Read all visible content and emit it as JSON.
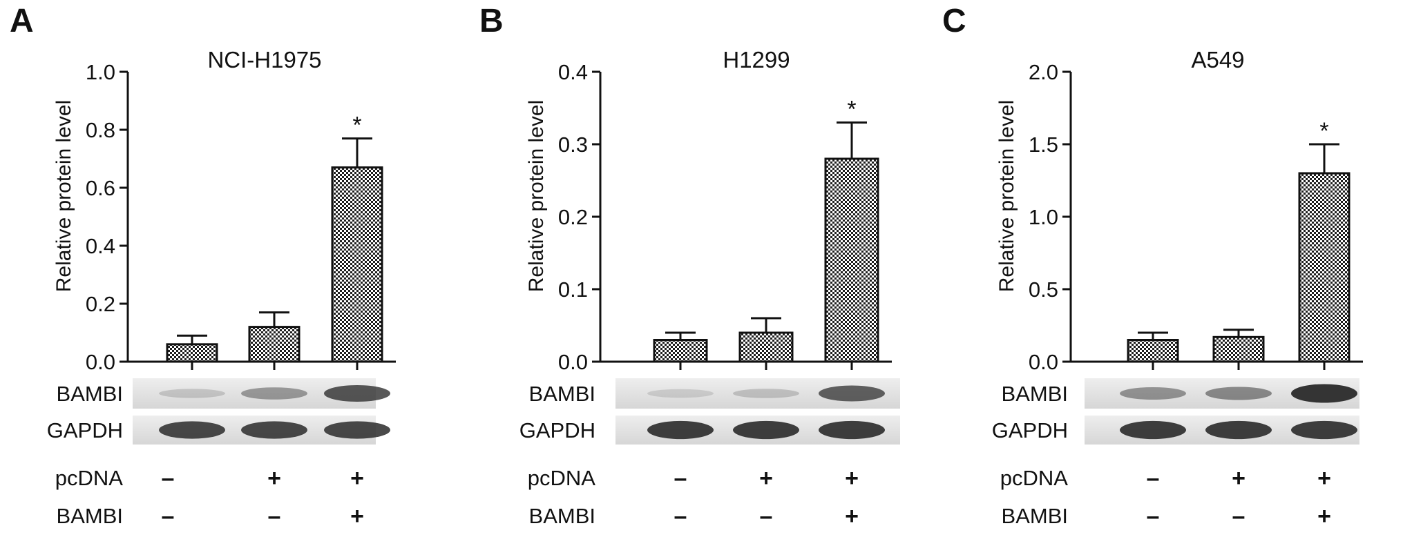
{
  "figure": {
    "panels": [
      {
        "letter": "A",
        "title": "NCI-H1975"
      },
      {
        "letter": "B",
        "title": "H1299"
      },
      {
        "letter": "C",
        "title": "A549"
      }
    ],
    "blot_rows": [
      "BAMBI",
      "GAPDH"
    ],
    "treatment_rows": [
      {
        "label": "pcDNA",
        "marks": [
          "–",
          "+",
          "+"
        ]
      },
      {
        "label": "BAMBI",
        "marks": [
          "–",
          "–",
          "+"
        ]
      }
    ],
    "colors": {
      "bar_fill": "#9a9a9a",
      "axis": "#111111",
      "blot_bg": "#e2e2e2",
      "band": "#2a2a2a"
    }
  },
  "chart_data": [
    {
      "type": "bar",
      "title": "NCI-H1975",
      "ylabel": "Relative protein level",
      "ylim": [
        0,
        1.0
      ],
      "yticks": [
        0.0,
        0.2,
        0.4,
        0.6,
        0.8,
        1.0
      ],
      "ytick_labels": [
        "0.0",
        "0.2",
        "0.4",
        "0.6",
        "0.8",
        "1.0"
      ],
      "categories": [
        "pcDNA – / BAMBI –",
        "pcDNA + / BAMBI –",
        "pcDNA + / BAMBI +"
      ],
      "values": [
        0.06,
        0.12,
        0.67
      ],
      "errors": [
        0.03,
        0.05,
        0.1
      ],
      "annotations": [
        "",
        "",
        "*"
      ],
      "bambi_band_intensity": [
        0.18,
        0.42,
        0.78
      ],
      "gapdh_band_intensity": [
        0.85,
        0.85,
        0.85
      ]
    },
    {
      "type": "bar",
      "title": "H1299",
      "ylabel": "Relative protein level",
      "ylim": [
        0,
        0.4
      ],
      "yticks": [
        0.0,
        0.1,
        0.2,
        0.3,
        0.4
      ],
      "ytick_labels": [
        "0.0",
        "0.1",
        "0.2",
        "0.3",
        "0.4"
      ],
      "categories": [
        "pcDNA – / BAMBI –",
        "pcDNA + / BAMBI –",
        "pcDNA + / BAMBI +"
      ],
      "values": [
        0.03,
        0.04,
        0.28
      ],
      "errors": [
        0.01,
        0.02,
        0.05
      ],
      "annotations": [
        "",
        "",
        "*"
      ],
      "bambi_band_intensity": [
        0.14,
        0.2,
        0.72
      ],
      "gapdh_band_intensity": [
        0.9,
        0.9,
        0.9
      ]
    },
    {
      "type": "bar",
      "title": "A549",
      "ylabel": "Relative protein level",
      "ylim": [
        0,
        2.0
      ],
      "yticks": [
        0.0,
        0.5,
        1.0,
        1.5,
        2.0
      ],
      "ytick_labels": [
        "0.0",
        "0.5",
        "1.0",
        "1.5",
        "2.0"
      ],
      "categories": [
        "pcDNA – / BAMBI –",
        "pcDNA + / BAMBI –",
        "pcDNA + / BAMBI +"
      ],
      "values": [
        0.15,
        0.17,
        1.3
      ],
      "errors": [
        0.05,
        0.05,
        0.2
      ],
      "annotations": [
        "",
        "",
        "*"
      ],
      "bambi_band_intensity": [
        0.45,
        0.5,
        0.95
      ],
      "gapdh_band_intensity": [
        0.9,
        0.9,
        0.9
      ]
    }
  ]
}
